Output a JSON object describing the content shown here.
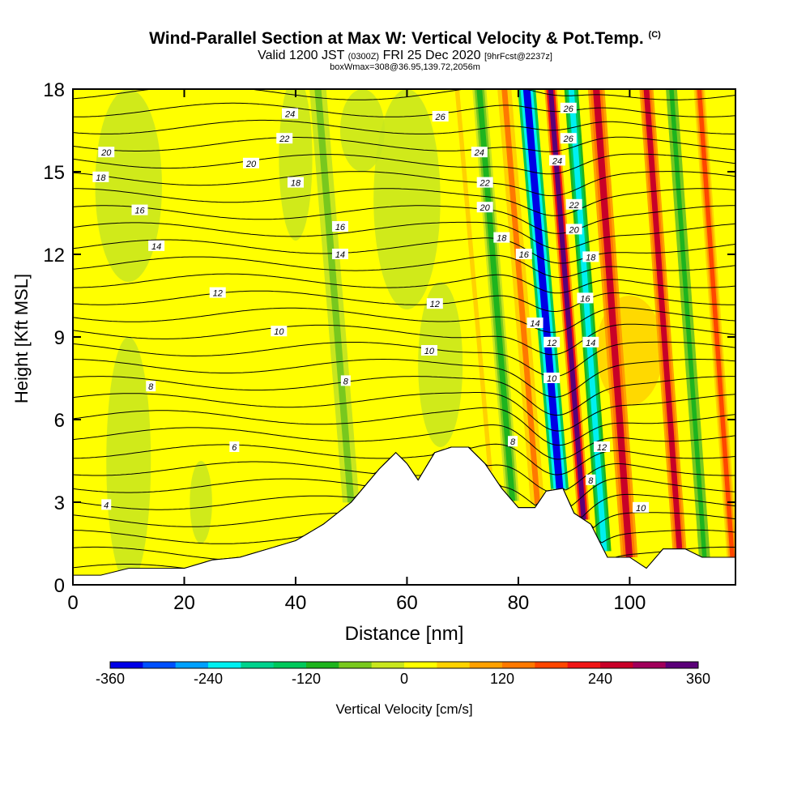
{
  "header": {
    "title": "Wind-Parallel Section at Max W: Vertical Velocity & Pot.Temp.",
    "copyright": "(C)",
    "valid_prefix": "Valid 1200 JST",
    "valid_utc": "(0300Z)",
    "valid_date": "FRI 25 Dec 2020",
    "forecast": "[9hrFcst@2237z]",
    "box_info": "boxWmax=308@36.95,139.72,2056m"
  },
  "chart_data": {
    "type": "heatmap",
    "xlabel": "Distance [nm]",
    "ylabel": "Height [Kft MSL]",
    "xlim": [
      0,
      119
    ],
    "ylim": [
      0,
      18
    ],
    "x_ticks": [
      0,
      20,
      40,
      60,
      80,
      100
    ],
    "y_ticks": [
      0,
      3,
      6,
      9,
      12,
      15,
      18
    ],
    "colorbar": {
      "label": "Vertical Velocity [cm/s]",
      "range": [
        -360,
        360
      ],
      "tick_labels": [
        "-360",
        "-240",
        "-120",
        "0",
        "120",
        "240",
        "360"
      ],
      "colors": [
        "#0000e6",
        "#0050ff",
        "#00a0ff",
        "#00f0f0",
        "#00d28c",
        "#00c85a",
        "#1eb41e",
        "#78c81e",
        "#c8e61e",
        "#ffff00",
        "#ffd200",
        "#ffa000",
        "#ff7800",
        "#ff4600",
        "#f01414",
        "#c80028",
        "#a0005a",
        "#5a0078"
      ]
    },
    "terrain_kft": [
      [
        0,
        0.35
      ],
      [
        5,
        0.35
      ],
      [
        10,
        0.6
      ],
      [
        15,
        0.6
      ],
      [
        20,
        0.6
      ],
      [
        25,
        0.9
      ],
      [
        30,
        1.0
      ],
      [
        35,
        1.3
      ],
      [
        40,
        1.6
      ],
      [
        45,
        2.2
      ],
      [
        50,
        3.0
      ],
      [
        55,
        4.2
      ],
      [
        58,
        4.8
      ],
      [
        60,
        4.4
      ],
      [
        62,
        3.8
      ],
      [
        65,
        4.8
      ],
      [
        68,
        5.0
      ],
      [
        71,
        5.0
      ],
      [
        74,
        4.4
      ],
      [
        77,
        3.5
      ],
      [
        80,
        2.8
      ],
      [
        83,
        2.8
      ],
      [
        85,
        3.4
      ],
      [
        88,
        3.5
      ],
      [
        90,
        2.6
      ],
      [
        93,
        2.2
      ],
      [
        96,
        1.0
      ],
      [
        100,
        1.0
      ],
      [
        103,
        0.6
      ],
      [
        106,
        1.3
      ],
      [
        110,
        1.3
      ],
      [
        113,
        1.0
      ],
      [
        119,
        1.0
      ]
    ],
    "velocity_bands": [
      {
        "x": 81.5,
        "w": 3.2,
        "value": -360
      },
      {
        "x": 85.8,
        "w": 2.2,
        "value": 320
      },
      {
        "x": 89.5,
        "w": 2.5,
        "value": -240
      },
      {
        "x": 94.0,
        "w": 3.0,
        "value": 240
      },
      {
        "x": 77.5,
        "w": 2.5,
        "value": 120
      },
      {
        "x": 73.0,
        "w": 2.5,
        "value": -90
      },
      {
        "x": 103.0,
        "w": 2.5,
        "value": 240
      },
      {
        "x": 107.5,
        "w": 2.0,
        "value": -120
      },
      {
        "x": 112.5,
        "w": 2.0,
        "value": 160
      },
      {
        "x": 69.0,
        "w": 2.0,
        "value": 60
      },
      {
        "x": 44.0,
        "w": 3.0,
        "value": -60
      }
    ],
    "theta_contour_labels": [
      {
        "x": 6,
        "y": 2.9,
        "label": "4"
      },
      {
        "x": 29,
        "y": 5.0,
        "label": "6"
      },
      {
        "x": 14,
        "y": 7.2,
        "label": "8"
      },
      {
        "x": 49,
        "y": 7.4,
        "label": "8"
      },
      {
        "x": 79,
        "y": 5.2,
        "label": "8"
      },
      {
        "x": 93,
        "y": 3.8,
        "label": "8"
      },
      {
        "x": 37,
        "y": 9.2,
        "label": "10"
      },
      {
        "x": 64,
        "y": 8.5,
        "label": "10"
      },
      {
        "x": 86,
        "y": 7.5,
        "label": "10"
      },
      {
        "x": 102,
        "y": 2.8,
        "label": "10"
      },
      {
        "x": 26,
        "y": 10.6,
        "label": "12"
      },
      {
        "x": 65,
        "y": 10.2,
        "label": "12"
      },
      {
        "x": 86,
        "y": 8.8,
        "label": "12"
      },
      {
        "x": 95,
        "y": 5.0,
        "label": "12"
      },
      {
        "x": 15,
        "y": 12.3,
        "label": "14"
      },
      {
        "x": 48,
        "y": 12.0,
        "label": "14"
      },
      {
        "x": 83,
        "y": 9.5,
        "label": "14"
      },
      {
        "x": 93,
        "y": 8.8,
        "label": "14"
      },
      {
        "x": 12,
        "y": 13.6,
        "label": "16"
      },
      {
        "x": 48,
        "y": 13.0,
        "label": "16"
      },
      {
        "x": 81,
        "y": 12.0,
        "label": "16"
      },
      {
        "x": 92,
        "y": 10.4,
        "label": "16"
      },
      {
        "x": 5,
        "y": 14.8,
        "label": "18"
      },
      {
        "x": 40,
        "y": 14.6,
        "label": "18"
      },
      {
        "x": 77,
        "y": 12.6,
        "label": "18"
      },
      {
        "x": 93,
        "y": 11.9,
        "label": "18"
      },
      {
        "x": 6,
        "y": 15.7,
        "label": "20"
      },
      {
        "x": 32,
        "y": 15.3,
        "label": "20"
      },
      {
        "x": 74,
        "y": 13.7,
        "label": "20"
      },
      {
        "x": 90,
        "y": 12.9,
        "label": "20"
      },
      {
        "x": 38,
        "y": 16.2,
        "label": "22"
      },
      {
        "x": 74,
        "y": 14.6,
        "label": "22"
      },
      {
        "x": 90,
        "y": 13.8,
        "label": "22"
      },
      {
        "x": 39,
        "y": 17.1,
        "label": "24"
      },
      {
        "x": 73,
        "y": 15.7,
        "label": "24"
      },
      {
        "x": 87,
        "y": 15.4,
        "label": "24"
      },
      {
        "x": 66,
        "y": 17.0,
        "label": "26"
      },
      {
        "x": 89,
        "y": 16.2,
        "label": "26"
      },
      {
        "x": 89,
        "y": 17.3,
        "label": "26"
      }
    ]
  }
}
